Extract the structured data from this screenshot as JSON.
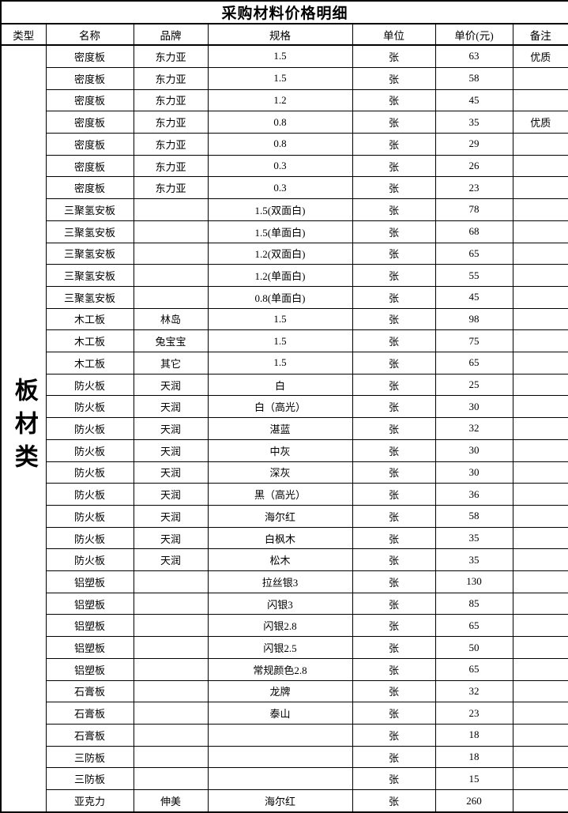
{
  "document": {
    "title": "采购材料价格明细",
    "category_label": "板材类",
    "columns": [
      "类型",
      "名称",
      "品牌",
      "规格",
      "单位",
      "单价(元)",
      "备注"
    ],
    "rows": [
      {
        "name": "密度板",
        "brand": "东力亚",
        "spec": "1.5",
        "unit": "张",
        "price": "63",
        "note": "优质"
      },
      {
        "name": "密度板",
        "brand": "东力亚",
        "spec": "1.5",
        "unit": "张",
        "price": "58",
        "note": ""
      },
      {
        "name": "密度板",
        "brand": "东力亚",
        "spec": "1.2",
        "unit": "张",
        "price": "45",
        "note": ""
      },
      {
        "name": "密度板",
        "brand": "东力亚",
        "spec": "0.8",
        "unit": "张",
        "price": "35",
        "note": "优质"
      },
      {
        "name": "密度板",
        "brand": "东力亚",
        "spec": "0.8",
        "unit": "张",
        "price": "29",
        "note": ""
      },
      {
        "name": "密度板",
        "brand": "东力亚",
        "spec": "0.3",
        "unit": "张",
        "price": "26",
        "note": ""
      },
      {
        "name": "密度板",
        "brand": "东力亚",
        "spec": "0.3",
        "unit": "张",
        "price": "23",
        "note": ""
      },
      {
        "name": "三聚氢安板",
        "brand": "",
        "spec": "1.5(双面白)",
        "unit": "张",
        "price": "78",
        "note": ""
      },
      {
        "name": "三聚氢安板",
        "brand": "",
        "spec": "1.5(单面白)",
        "unit": "张",
        "price": "68",
        "note": ""
      },
      {
        "name": "三聚氢安板",
        "brand": "",
        "spec": "1.2(双面白)",
        "unit": "张",
        "price": "65",
        "note": ""
      },
      {
        "name": "三聚氢安板",
        "brand": "",
        "spec": "1.2(单面白)",
        "unit": "张",
        "price": "55",
        "note": ""
      },
      {
        "name": "三聚氢安板",
        "brand": "",
        "spec": "0.8(单面白)",
        "unit": "张",
        "price": "45",
        "note": ""
      },
      {
        "name": "木工板",
        "brand": "林岛",
        "spec": "1.5",
        "unit": "张",
        "price": "98",
        "note": ""
      },
      {
        "name": "木工板",
        "brand": "兔宝宝",
        "spec": "1.5",
        "unit": "张",
        "price": "75",
        "note": ""
      },
      {
        "name": "木工板",
        "brand": "其它",
        "spec": "1.5",
        "unit": "张",
        "price": "65",
        "note": ""
      },
      {
        "name": "防火板",
        "brand": "天润",
        "spec": "白",
        "unit": "张",
        "price": "25",
        "note": ""
      },
      {
        "name": "防火板",
        "brand": "天润",
        "spec": "白（高光）",
        "unit": "张",
        "price": "30",
        "note": ""
      },
      {
        "name": "防火板",
        "brand": "天润",
        "spec": "湛蓝",
        "unit": "张",
        "price": "32",
        "note": ""
      },
      {
        "name": "防火板",
        "brand": "天润",
        "spec": "中灰",
        "unit": "张",
        "price": "30",
        "note": ""
      },
      {
        "name": "防火板",
        "brand": "天润",
        "spec": "深灰",
        "unit": "张",
        "price": "30",
        "note": ""
      },
      {
        "name": "防火板",
        "brand": "天润",
        "spec": "黑（高光）",
        "unit": "张",
        "price": "36",
        "note": ""
      },
      {
        "name": "防火板",
        "brand": "天润",
        "spec": "海尔红",
        "unit": "张",
        "price": "58",
        "note": ""
      },
      {
        "name": "防火板",
        "brand": "天润",
        "spec": "白枫木",
        "unit": "张",
        "price": "35",
        "note": ""
      },
      {
        "name": "防火板",
        "brand": "天润",
        "spec": "松木",
        "unit": "张",
        "price": "35",
        "note": ""
      },
      {
        "name": "铝塑板",
        "brand": "",
        "spec": "拉丝银3",
        "unit": "张",
        "price": "130",
        "note": ""
      },
      {
        "name": "铝塑板",
        "brand": "",
        "spec": "闪银3",
        "unit": "张",
        "price": "85",
        "note": ""
      },
      {
        "name": "铝塑板",
        "brand": "",
        "spec": "闪银2.8",
        "unit": "张",
        "price": "65",
        "note": ""
      },
      {
        "name": "铝塑板",
        "brand": "",
        "spec": "闪银2.5",
        "unit": "张",
        "price": "50",
        "note": ""
      },
      {
        "name": "铝塑板",
        "brand": "",
        "spec": "常规颜色2.8",
        "unit": "张",
        "price": "65",
        "note": ""
      },
      {
        "name": "石膏板",
        "brand": "",
        "spec": "龙牌",
        "unit": "张",
        "price": "32",
        "note": ""
      },
      {
        "name": "石膏板",
        "brand": "",
        "spec": "泰山",
        "unit": "张",
        "price": "23",
        "note": ""
      },
      {
        "name": "石膏板",
        "brand": "",
        "spec": "",
        "unit": "张",
        "price": "18",
        "note": ""
      },
      {
        "name": "三防板",
        "brand": "",
        "spec": "",
        "unit": "张",
        "price": "18",
        "note": ""
      },
      {
        "name": "三防板",
        "brand": "",
        "spec": "",
        "unit": "张",
        "price": "15",
        "note": ""
      },
      {
        "name": "亚克力",
        "brand": "伸美",
        "spec": "海尔红",
        "unit": "张",
        "price": "260",
        "note": ""
      }
    ]
  }
}
